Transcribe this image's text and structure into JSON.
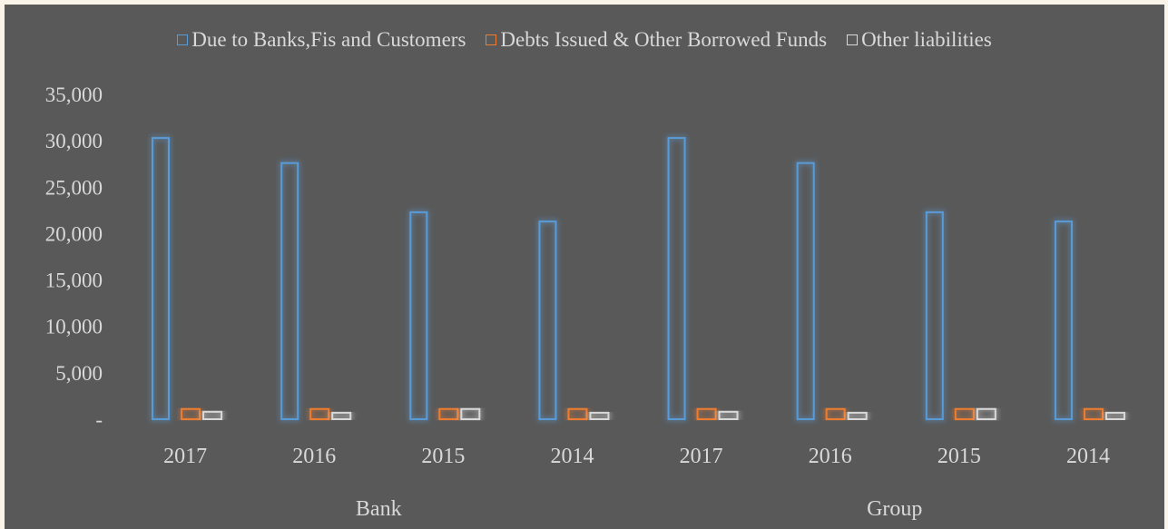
{
  "chart_data": {
    "type": "bar",
    "title": "",
    "xlabel": "",
    "ylabel": "",
    "ylim": [
      0,
      35000
    ],
    "yticks": [
      {
        "value": 0,
        "label": "-"
      },
      {
        "value": 5000,
        "label": "5,000"
      },
      {
        "value": 10000,
        "label": "10,000"
      },
      {
        "value": 15000,
        "label": "15,000"
      },
      {
        "value": 20000,
        "label": "20,000"
      },
      {
        "value": 25000,
        "label": "25,000"
      },
      {
        "value": 30000,
        "label": "30,000"
      },
      {
        "value": 35000,
        "label": "35,000"
      }
    ],
    "groups": [
      "Bank",
      "Group"
    ],
    "categories": [
      "2017",
      "2016",
      "2015",
      "2014",
      "2017",
      "2016",
      "2015",
      "2014"
    ],
    "category_group": [
      0,
      0,
      0,
      0,
      1,
      1,
      1,
      1
    ],
    "series": [
      {
        "name": "Due to Banks,Fis and Customers",
        "color": "#5b9bd5",
        "values": [
          30300,
          27600,
          22300,
          21300,
          30300,
          27600,
          22300,
          21300
        ]
      },
      {
        "name": "Debts Issued & Other Borrowed Funds",
        "color": "#ed7d31",
        "values": [
          1100,
          1100,
          1100,
          1100,
          1100,
          1100,
          1100,
          1100
        ]
      },
      {
        "name": "Other liabilities",
        "color": "#d9d9d9",
        "values": [
          800,
          700,
          1100,
          700,
          800,
          700,
          1100,
          700
        ]
      }
    ],
    "grid": false,
    "legend_position": "top"
  }
}
